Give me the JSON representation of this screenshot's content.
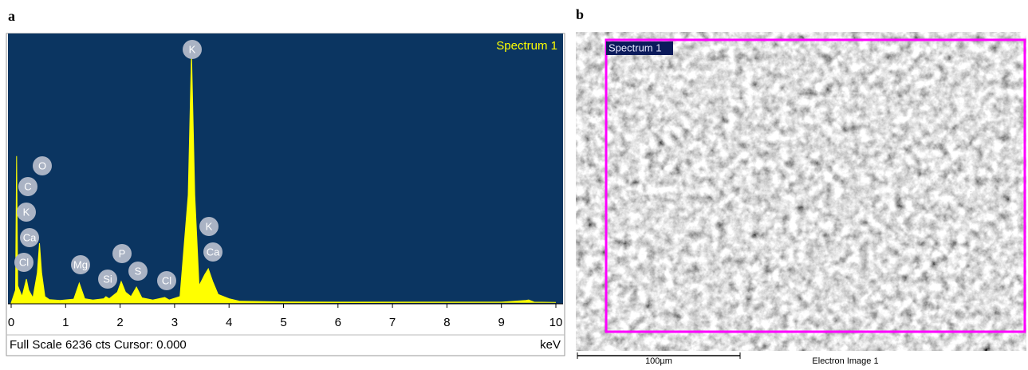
{
  "panels": {
    "a": "a",
    "b": "b"
  },
  "chart_data": {
    "type": "area",
    "title": "Spectrum 1",
    "color": "#ffff00",
    "x": [
      0,
      0.08,
      0.1,
      0.12,
      0.2,
      0.28,
      0.32,
      0.4,
      0.48,
      0.52,
      0.56,
      0.62,
      0.7,
      0.9,
      1.15,
      1.25,
      1.35,
      1.5,
      1.7,
      1.74,
      1.8,
      1.95,
      2.02,
      2.1,
      2.2,
      2.3,
      2.4,
      2.6,
      2.82,
      2.9,
      3.1,
      3.25,
      3.31,
      3.37,
      3.45,
      3.55,
      3.62,
      3.7,
      3.8,
      4.0,
      4.2,
      5,
      6,
      7,
      8,
      9,
      9.45,
      9.5,
      9.6,
      10
    ],
    "values": [
      0,
      300,
      3400,
      400,
      150,
      553,
      300,
      120,
      700,
      1384,
      700,
      150,
      80,
      60,
      90,
      461,
      100,
      70,
      100,
      148,
      100,
      250,
      498,
      250,
      150,
      369,
      120,
      70,
      129,
      70,
      150,
      2500,
      5812,
      2500,
      400,
      650,
      793,
      500,
      200,
      100,
      40,
      25,
      20,
      20,
      20,
      20,
      60,
      70,
      20,
      15
    ],
    "xlim": [
      0,
      10
    ],
    "xticks": [
      0,
      1,
      2,
      3,
      4,
      5,
      6,
      7,
      8,
      9,
      10
    ],
    "ylim": [
      0,
      6236
    ],
    "x_unit": "keV",
    "footer": "Full Scale 6236 cts Cursor: 0.000",
    "peak_labels": [
      "O",
      "C",
      "K",
      "Ca",
      "Cl",
      "Mg",
      "Si",
      "P",
      "S",
      "Cl",
      "K",
      "K",
      "Ca"
    ]
  },
  "image": {
    "region_label": "Spectrum 1",
    "scale_bar": "100µm",
    "caption": "Electron Image 1"
  }
}
